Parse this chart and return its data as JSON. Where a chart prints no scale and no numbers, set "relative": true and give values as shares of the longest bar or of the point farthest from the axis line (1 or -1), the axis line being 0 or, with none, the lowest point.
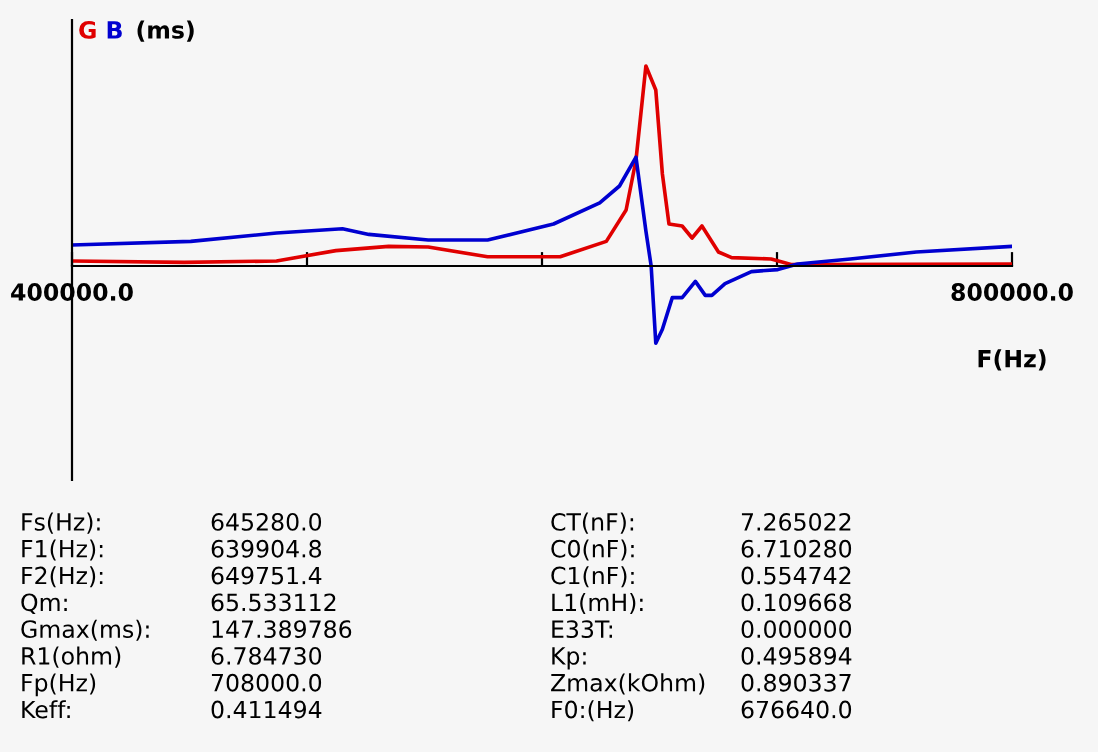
{
  "chart_data": {
    "type": "line",
    "relative": true,
    "ylabel": "(ms)",
    "xlabel": "F(Hz)",
    "xlim": [
      400000,
      800000
    ],
    "xticks": [
      {
        "value": 400000,
        "label": "400000.0"
      },
      {
        "value": 500000,
        "label": null
      },
      {
        "value": 600000,
        "label": null
      },
      {
        "value": 700000,
        "label": null
      },
      {
        "value": 800000,
        "label": "800000.0"
      }
    ],
    "grid": false,
    "legend": false,
    "marker": "none",
    "line_style": "solid",
    "series": [
      {
        "name": "G",
        "color": "#e00000",
        "x": [
          400000,
          447720,
          487020,
          512280,
          534740,
          551580,
          576840,
          607720,
          627370,
          635790,
          640000,
          644210,
          648420,
          651230,
          654030,
          659650,
          663860,
          668070,
          675090,
          680700,
          697540,
          705960,
          800000
        ],
        "values": [
          0.025,
          0.018,
          0.025,
          0.077,
          0.098,
          0.095,
          0.046,
          0.046,
          0.123,
          0.28,
          0.53,
          1.0,
          0.88,
          0.46,
          0.21,
          0.2,
          0.14,
          0.2,
          0.07,
          0.042,
          0.035,
          0.007,
          0.01
        ]
      },
      {
        "name": "B",
        "color": "#0000d0",
        "x": [
          400000,
          450530,
          487020,
          515090,
          526320,
          551580,
          576840,
          604910,
          624560,
          632980,
          640000,
          644210,
          646450,
          648420,
          651230,
          655440,
          659650,
          665260,
          669470,
          672280,
          677890,
          689120,
          700350,
          708770,
          731230,
          759300,
          800000
        ],
        "values": [
          0.105,
          0.123,
          0.165,
          0.186,
          0.158,
          0.13,
          0.13,
          0.21,
          0.316,
          0.4,
          0.544,
          0.175,
          0.0,
          -0.386,
          -0.316,
          -0.158,
          -0.158,
          -0.077,
          -0.147,
          -0.147,
          -0.088,
          -0.028,
          -0.018,
          0.01,
          0.035,
          0.07,
          0.098
        ]
      }
    ],
    "annotations": [
      "Fs(Hz):",
      "645280.0",
      "CT(nF):",
      "7.265022",
      "F1(Hz):",
      "639904.8",
      "C0(nF):",
      "6.710280",
      "F2(Hz):",
      "649751.4",
      "C1(nF):",
      "0.554742",
      "Qm:",
      "65.533112",
      "L1(mH):",
      "0.109668",
      "Gmax(ms):",
      "147.389786",
      "E33T:",
      "0.000000",
      "R1(ohm)",
      "6.784730",
      "Kp:",
      "0.495894",
      "Fp(Hz)",
      "708000.0",
      "Zmax(kOhm)",
      "0.890337",
      "Keff:",
      "0.411494",
      "F0:(Hz)",
      "676640.0"
    ]
  }
}
